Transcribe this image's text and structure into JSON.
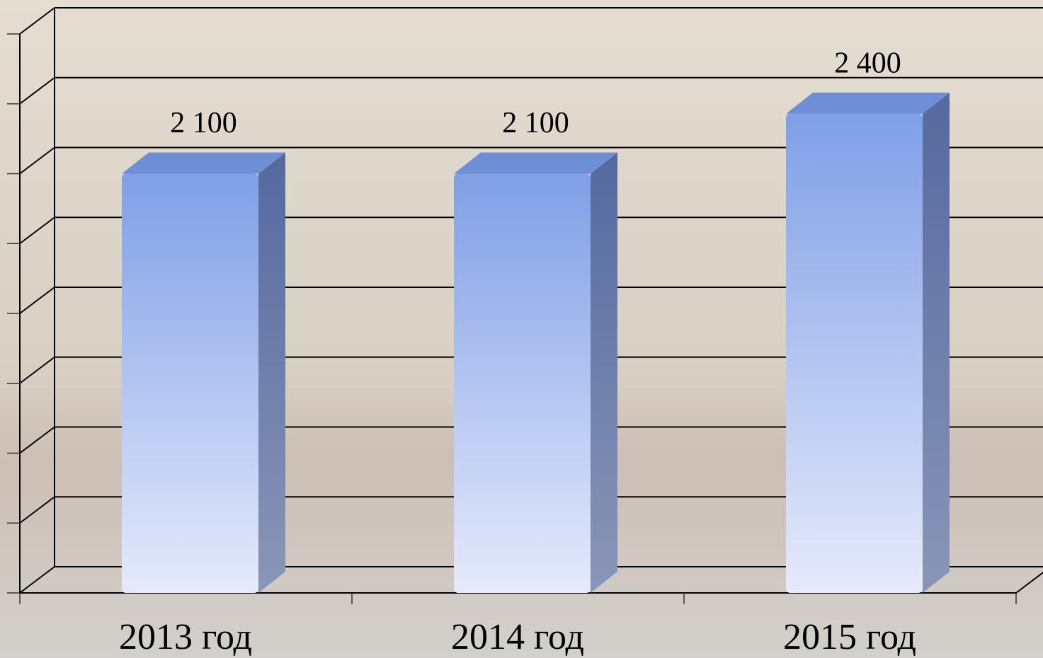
{
  "chart_data": {
    "type": "bar3d",
    "categories": [
      "2013 год",
      "2014 год",
      "2015 год"
    ],
    "values": [
      2100,
      2100,
      2400
    ],
    "value_labels": [
      "2 100",
      "2 100",
      "2 400"
    ],
    "color": "#7f9fe6",
    "ylim": [
      0,
      2800
    ],
    "yticks": [
      0,
      350,
      700,
      1050,
      1400,
      1750,
      2100,
      2450,
      2800
    ],
    "grid": true
  }
}
